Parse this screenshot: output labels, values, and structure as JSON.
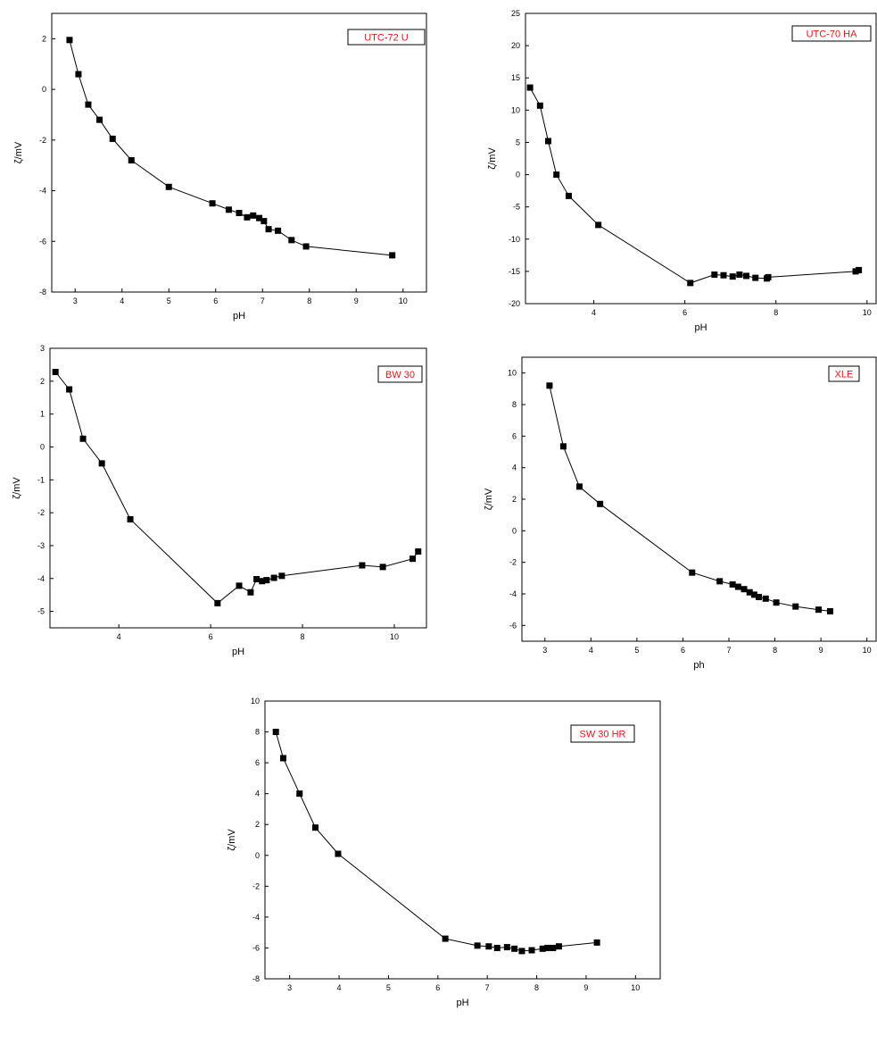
{
  "chart_data": [
    {
      "type": "line",
      "legend": "UTC-72 U",
      "xlabel": "pH",
      "ylabel": "ζ/mV",
      "xlim": [
        2.5,
        10.5
      ],
      "ylim": [
        -8,
        3
      ],
      "xticks": [
        3,
        4,
        5,
        6,
        7,
        8,
        9,
        10
      ],
      "yticks": [
        -8,
        -6,
        -4,
        -2,
        0,
        2
      ],
      "legend_position": "top-right",
      "marker": "square",
      "x": [
        2.88,
        3.07,
        3.28,
        3.52,
        3.8,
        4.2,
        5.0,
        5.93,
        6.28,
        6.5,
        6.67,
        6.8,
        6.93,
        7.03,
        7.13,
        7.33,
        7.62,
        7.93,
        9.77
      ],
      "y": [
        1.95,
        0.6,
        -0.6,
        -1.2,
        -1.95,
        -2.8,
        -3.85,
        -4.5,
        -4.75,
        -4.88,
        -5.05,
        -4.98,
        -5.08,
        -5.2,
        -5.52,
        -5.58,
        -5.95,
        -6.2,
        -6.55
      ]
    },
    {
      "type": "line",
      "legend": "UTC-70 HA",
      "xlabel": "pH",
      "ylabel": "ζ/mV",
      "xlim": [
        2.5,
        10.2
      ],
      "ylim": [
        -20,
        25
      ],
      "xticks": [
        4,
        6,
        8,
        10
      ],
      "yticks": [
        -20,
        -15,
        -10,
        -5,
        0,
        5,
        10,
        15,
        20,
        25
      ],
      "legend_position": "top-right",
      "marker": "square",
      "x": [
        2.6,
        2.82,
        3.0,
        3.18,
        3.45,
        4.1,
        6.12,
        6.65,
        6.85,
        7.05,
        7.2,
        7.35,
        7.55,
        7.8,
        7.83,
        9.75,
        9.82
      ],
      "y": [
        13.5,
        10.7,
        5.2,
        0.0,
        -3.3,
        -7.8,
        -16.8,
        -15.5,
        -15.6,
        -15.8,
        -15.5,
        -15.7,
        -16.0,
        -16.1,
        -15.9,
        -15.0,
        -14.8
      ]
    },
    {
      "type": "line",
      "legend": "BW 30",
      "xlabel": "pH",
      "ylabel": "ζ/mV",
      "xlim": [
        2.5,
        10.7
      ],
      "ylim": [
        -5.5,
        3
      ],
      "xticks": [
        4,
        6,
        8,
        10
      ],
      "yticks": [
        -5,
        -4,
        -3,
        -2,
        -1,
        0,
        1,
        2,
        3
      ],
      "legend_position": "top-right",
      "marker": "square",
      "x": [
        2.62,
        2.92,
        3.22,
        3.63,
        4.25,
        6.15,
        6.62,
        6.87,
        7.0,
        7.12,
        7.22,
        7.38,
        7.55,
        9.3,
        9.75,
        10.4,
        10.52
      ],
      "y": [
        2.28,
        1.75,
        0.25,
        -0.5,
        -2.2,
        -4.75,
        -4.22,
        -4.42,
        -4.02,
        -4.08,
        -4.05,
        -3.98,
        -3.92,
        -3.6,
        -3.65,
        -3.4,
        -3.18
      ]
    },
    {
      "type": "line",
      "legend": "XLE",
      "xlabel": "ph",
      "ylabel": "ζ/mV",
      "xlim": [
        2.5,
        10.2
      ],
      "ylim": [
        -7,
        11
      ],
      "xticks": [
        3,
        4,
        5,
        6,
        7,
        8,
        9,
        10
      ],
      "yticks": [
        -6,
        -4,
        -2,
        0,
        2,
        4,
        6,
        8,
        10
      ],
      "legend_position": "top-right",
      "marker": "square",
      "x": [
        3.1,
        3.4,
        3.75,
        4.2,
        6.2,
        6.8,
        7.08,
        7.2,
        7.33,
        7.45,
        7.55,
        7.65,
        7.8,
        8.03,
        8.45,
        8.95,
        9.2
      ],
      "y": [
        9.2,
        5.35,
        2.8,
        1.7,
        -2.65,
        -3.2,
        -3.4,
        -3.55,
        -3.7,
        -3.9,
        -4.05,
        -4.2,
        -4.3,
        -4.55,
        -4.8,
        -5.0,
        -5.1
      ]
    },
    {
      "type": "line",
      "legend": "SW 30 HR",
      "xlabel": "pH",
      "ylabel": "ζ/mV",
      "xlim": [
        2.5,
        10.5
      ],
      "ylim": [
        -8,
        10
      ],
      "xticks": [
        3,
        4,
        5,
        6,
        7,
        8,
        9,
        10
      ],
      "yticks": [
        -8,
        -6,
        -4,
        -2,
        0,
        2,
        4,
        6,
        8,
        10
      ],
      "legend_position": "top-right",
      "marker": "square",
      "x": [
        2.72,
        2.87,
        3.2,
        3.52,
        3.98,
        6.15,
        6.8,
        7.03,
        7.2,
        7.4,
        7.55,
        7.7,
        7.9,
        8.12,
        8.22,
        8.33,
        8.45,
        9.22
      ],
      "y": [
        8.0,
        6.3,
        4.0,
        1.8,
        0.1,
        -5.4,
        -5.85,
        -5.9,
        -6.0,
        -5.95,
        -6.05,
        -6.2,
        -6.15,
        -6.05,
        -6.0,
        -6.0,
        -5.9,
        -5.65
      ]
    }
  ]
}
